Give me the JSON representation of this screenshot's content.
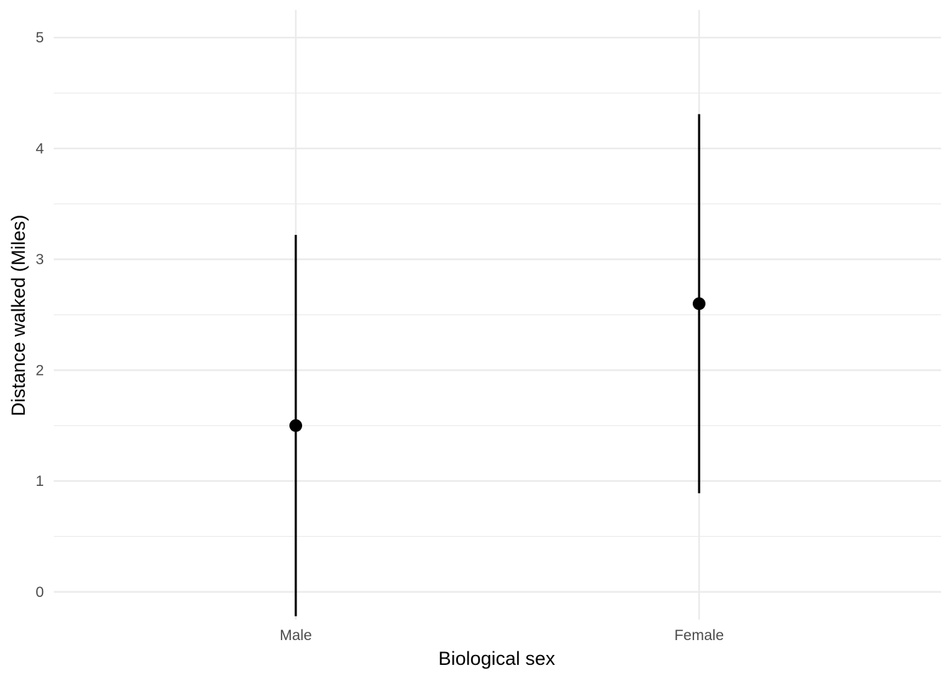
{
  "chart_data": {
    "type": "pointrange",
    "title": "",
    "xlabel": "Biological sex",
    "ylabel": "Distance walked (Miles)",
    "categories": [
      "Male",
      "Female"
    ],
    "series": [
      {
        "values": [
          1.5,
          2.6
        ],
        "lower": [
          -0.22,
          0.89
        ],
        "upper": [
          3.22,
          4.31
        ]
      }
    ],
    "ylim": [
      -0.25,
      5.25
    ],
    "yticks": [
      0,
      1,
      2,
      3,
      4,
      5
    ],
    "ytick_labels": [
      "0",
      "1",
      "2",
      "3",
      "4",
      "5"
    ],
    "yminor_ticks": [
      0.5,
      1.5,
      2.5,
      3.5,
      4.5
    ],
    "grid": true,
    "legend": "none",
    "colors": {
      "point": "#000000",
      "grid": "#ebebeb",
      "tick_text": "#4d4d4d"
    }
  }
}
